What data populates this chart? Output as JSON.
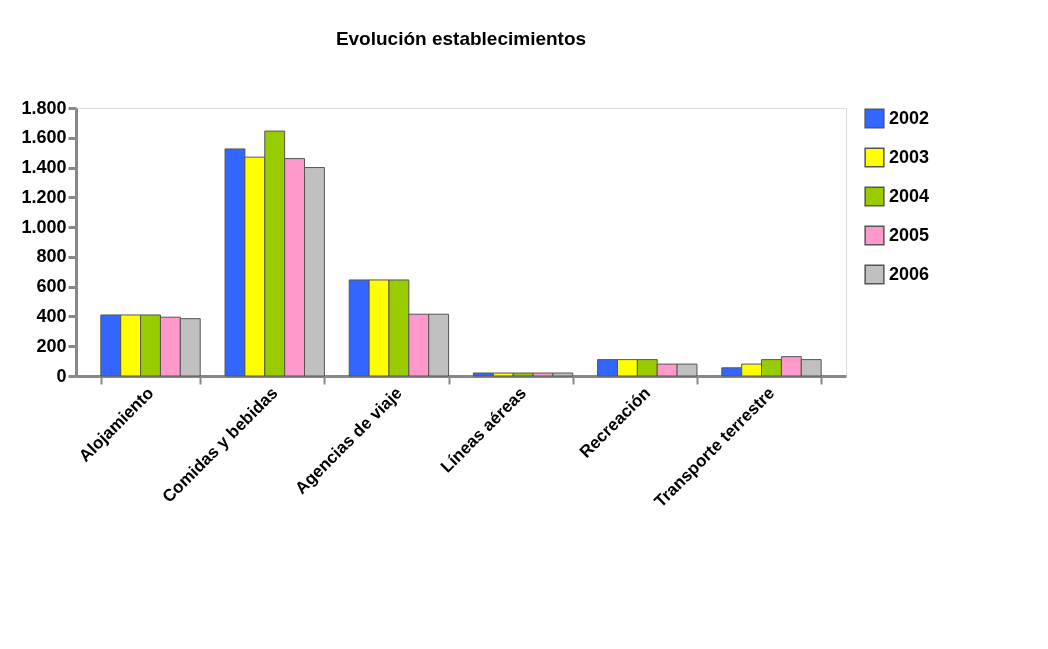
{
  "chart_data": {
    "type": "bar",
    "title": "Evolución establecimientos",
    "categories": [
      "Alojamiento",
      "Comidas y bebidas",
      "Agencias de viaje",
      "Líneas aéreas",
      "Recreación",
      "Transporte terrestre"
    ],
    "series": [
      {
        "name": "2002",
        "color": "#3366ff",
        "values": [
          410,
          1525,
          645,
          20,
          110,
          55
        ]
      },
      {
        "name": "2003",
        "color": "#ffff00",
        "values": [
          410,
          1470,
          645,
          20,
          110,
          80
        ]
      },
      {
        "name": "2004",
        "color": "#99cc00",
        "values": [
          410,
          1645,
          645,
          20,
          110,
          110
        ]
      },
      {
        "name": "2005",
        "color": "#ff99cc",
        "values": [
          395,
          1460,
          415,
          20,
          80,
          130
        ]
      },
      {
        "name": "2006",
        "color": "#c0c0c0",
        "values": [
          385,
          1400,
          415,
          20,
          80,
          110
        ]
      }
    ],
    "ylim": [
      0,
      1800
    ],
    "yticks": [
      0,
      200,
      400,
      600,
      800,
      {
        "value": 1000,
        "label": "1.000"
      },
      {
        "value": 1200,
        "label": "1.200"
      },
      {
        "value": 1400,
        "label": "1.400"
      },
      {
        "value": 1600,
        "label": "1.600"
      },
      {
        "value": 1800,
        "label": "1.800"
      }
    ],
    "grid": false,
    "legend": "right"
  }
}
